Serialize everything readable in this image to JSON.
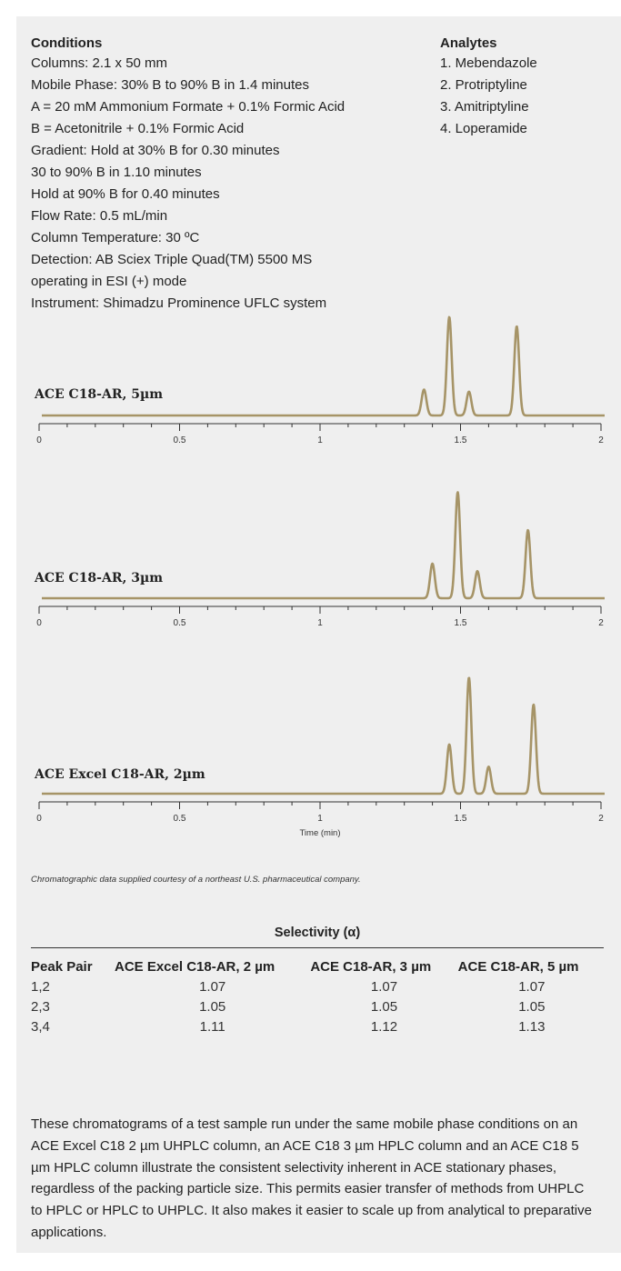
{
  "conditions": {
    "heading": "Conditions",
    "lines": [
      "Columns: 2.1 x 50 mm",
      "Mobile Phase: 30% B to 90% B in 1.4 minutes",
      "A = 20 mM Ammonium Formate + 0.1% Formic Acid",
      "B = Acetonitrile + 0.1% Formic Acid",
      "Gradient: Hold at 30% B for 0.30 minutes",
      "30 to 90% B in 1.10 minutes",
      "Hold at 90% B for 0.40 minutes",
      "Flow Rate: 0.5 mL/min",
      "Column Temperature: 30 ºC",
      "Detection: AB Sciex Triple Quad(TM) 5500 MS",
      "operating in ESI (+) mode",
      "Instrument:  Shimadzu Prominence UFLC system"
    ]
  },
  "analytes": {
    "heading": "Analytes",
    "items": [
      "1. Mebendazole",
      "2. Protriptyline",
      "3. Amitriptyline",
      "4. Loperamide"
    ]
  },
  "colors": {
    "trace": "#a69467",
    "axis": "#333333",
    "panel": "#efefef"
  },
  "chart_data": [
    {
      "type": "line",
      "title": "ACE C18-AR, 5µm",
      "xlabel": "",
      "xlim": [
        0,
        2
      ],
      "xticks": [
        "0",
        "0.5",
        "1",
        "1.5",
        "2"
      ],
      "peaks": [
        {
          "time": 1.37,
          "height": 0.25
        },
        {
          "time": 1.46,
          "height": 0.95
        },
        {
          "time": 1.53,
          "height": 0.23
        },
        {
          "time": 1.7,
          "height": 0.86
        }
      ]
    },
    {
      "type": "line",
      "title": "ACE C18-AR, 3µm",
      "xlabel": "",
      "xlim": [
        0,
        2
      ],
      "xticks": [
        "0",
        "0.5",
        "1",
        "1.5",
        "2"
      ],
      "peaks": [
        {
          "time": 1.4,
          "height": 0.32
        },
        {
          "time": 1.49,
          "height": 0.98
        },
        {
          "time": 1.56,
          "height": 0.25
        },
        {
          "time": 1.74,
          "height": 0.63
        }
      ]
    },
    {
      "type": "line",
      "title": "ACE Excel C18-AR, 2µm",
      "xlabel": "Time (min)",
      "xlim": [
        0,
        2
      ],
      "xticks": [
        "0",
        "0.5",
        "1",
        "1.5",
        "2"
      ],
      "peaks": [
        {
          "time": 1.46,
          "height": 0.42
        },
        {
          "time": 1.53,
          "height": 0.99
        },
        {
          "time": 1.6,
          "height": 0.23
        },
        {
          "time": 1.76,
          "height": 0.76
        }
      ]
    }
  ],
  "credit": "Chromatographic data supplied courtesy of a northeast U.S. pharmaceutical company.",
  "selectivity": {
    "title": "Selectivity (α)",
    "headers": [
      "Peak Pair",
      "ACE Excel C18-AR, 2 µm",
      "ACE C18-AR, 3 µm",
      "ACE C18-AR, 5 µm"
    ],
    "rows": [
      [
        "1,2",
        "1.07",
        "1.07",
        "1.07"
      ],
      [
        "2,3",
        "1.05",
        "1.05",
        "1.05"
      ],
      [
        "3,4",
        "1.11",
        "1.12",
        "1.13"
      ]
    ]
  },
  "body_text": "These chromatograms of a test sample run under the same mobile phase conditions on an ACE Excel C18 2 µm UHPLC column, an ACE C18 3 µm HPLC column and an ACE C18 5 µm HPLC column illustrate the consistent selectivity inherent in ACE stationary phases, regardless of the packing particle size. This permits easier transfer of methods from UHPLC to HPLC or HPLC to UHPLC. It also makes it easier to scale up from analytical to preparative applications."
}
